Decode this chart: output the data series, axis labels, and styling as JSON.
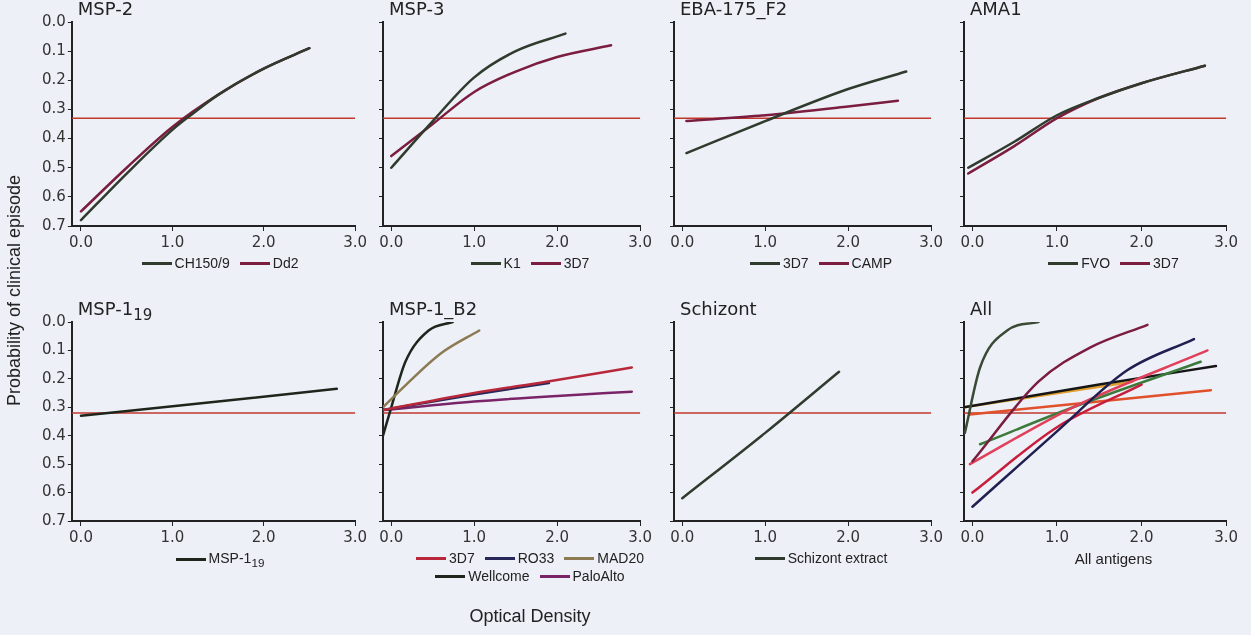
{
  "chart_data": [
    {
      "type": "line",
      "title": "MSP-2",
      "ylabel": "Probability of clinical episode",
      "xlim": [
        -0.1,
        3.0
      ],
      "xticks": [
        {
          "value": 0,
          "label": "0.0"
        },
        {
          "value": 1,
          "label": "1.0"
        },
        {
          "value": 2,
          "label": "2.0"
        },
        {
          "value": 3,
          "label": "3.0"
        }
      ],
      "ylim": [
        0.7,
        0.0
      ],
      "yticks": [
        {
          "value": 0,
          "label": "0.0"
        },
        {
          "value": 0.1,
          "label": "0.1"
        },
        {
          "value": 0.2,
          "label": "0.2"
        },
        {
          "value": 0.3,
          "label": "0.3"
        },
        {
          "value": 0.4,
          "label": "0.4"
        },
        {
          "value": 0.5,
          "label": "0.5"
        },
        {
          "value": 0.6,
          "label": "0.6"
        },
        {
          "value": 0.7,
          "label": "0.7"
        }
      ],
      "grid": false,
      "legend": "bottom",
      "marker": "none",
      "line_style": "solid",
      "ref_lines": [
        {
          "axis": "y",
          "value": 0.33,
          "color": "#c0392b"
        }
      ],
      "series": [
        {
          "name": "CH150/9",
          "color": "#2f3b2c",
          "x": [
            0,
            0.5,
            1.0,
            1.2,
            1.5,
            2.0,
            2.5
          ],
          "values": [
            0.68,
            0.52,
            0.37,
            0.32,
            0.25,
            0.16,
            0.09
          ]
        },
        {
          "name": "Dd2",
          "color": "#7b1d3f",
          "x": [
            0,
            0.5,
            1.0,
            1.5,
            2.0,
            2.5
          ],
          "values": [
            0.65,
            0.5,
            0.36,
            0.25,
            0.16,
            0.09
          ]
        }
      ]
    },
    {
      "type": "line",
      "title": "MSP-3",
      "xlim": [
        -0.1,
        3.0
      ],
      "xticks": [
        {
          "value": 0,
          "label": "0.0"
        },
        {
          "value": 1,
          "label": "1.0"
        },
        {
          "value": 2,
          "label": "2.0"
        },
        {
          "value": 3,
          "label": "3.0"
        }
      ],
      "ylim": [
        0.7,
        0.0
      ],
      "yticks": [
        {
          "value": 0,
          "label": null
        },
        {
          "value": 0.1,
          "label": null
        },
        {
          "value": 0.2,
          "label": null
        },
        {
          "value": 0.3,
          "label": null
        },
        {
          "value": 0.4,
          "label": null
        },
        {
          "value": 0.5,
          "label": null
        },
        {
          "value": 0.6,
          "label": null
        },
        {
          "value": 0.7,
          "label": null
        }
      ],
      "tick_labels": "x",
      "grid": false,
      "legend": "bottom",
      "marker": "none",
      "line_style": "solid",
      "ref_lines": [
        {
          "axis": "y",
          "value": 0.33,
          "color": "#c0392b"
        }
      ],
      "series": [
        {
          "name": "K1",
          "color": "#2f3b2c",
          "x": [
            0,
            0.5,
            1.0,
            1.5,
            2.1
          ],
          "values": [
            0.5,
            0.34,
            0.19,
            0.1,
            0.04
          ]
        },
        {
          "name": "3D7",
          "color": "#7b1d3f",
          "x": [
            0,
            0.5,
            1.0,
            1.5,
            2.0,
            2.65
          ],
          "values": [
            0.46,
            0.35,
            0.24,
            0.17,
            0.12,
            0.08
          ]
        }
      ]
    },
    {
      "type": "line",
      "title": "EBA-175_F2",
      "xlim": [
        -0.1,
        3.0
      ],
      "xticks": [
        {
          "value": 0,
          "label": "0.0"
        },
        {
          "value": 1,
          "label": "1.0"
        },
        {
          "value": 2,
          "label": "2.0"
        },
        {
          "value": 3,
          "label": "3.0"
        }
      ],
      "ylim": [
        0.7,
        0.0
      ],
      "yticks": [
        {
          "value": 0,
          "label": null
        },
        {
          "value": 0.1,
          "label": null
        },
        {
          "value": 0.2,
          "label": null
        },
        {
          "value": 0.3,
          "label": null
        },
        {
          "value": 0.4,
          "label": null
        },
        {
          "value": 0.5,
          "label": null
        },
        {
          "value": 0.6,
          "label": null
        },
        {
          "value": 0.7,
          "label": null
        }
      ],
      "tick_labels": "x",
      "grid": false,
      "legend": "bottom",
      "marker": "none",
      "line_style": "solid",
      "ref_lines": [
        {
          "axis": "y",
          "value": 0.33,
          "color": "#c0392b"
        }
      ],
      "series": [
        {
          "name": "3D7",
          "color": "#2f3b2c",
          "x": [
            0.05,
            1.0,
            2.0,
            2.7
          ],
          "values": [
            0.45,
            0.34,
            0.23,
            0.17
          ]
        },
        {
          "name": "CAMP",
          "color": "#7b1d3f",
          "x": [
            0.05,
            1.0,
            2.0,
            2.6
          ],
          "values": [
            0.34,
            0.32,
            0.29,
            0.27
          ]
        }
      ]
    },
    {
      "type": "line",
      "title": "AMA1",
      "xlim": [
        -0.1,
        3.0
      ],
      "xticks": [
        {
          "value": 0,
          "label": "0.0"
        },
        {
          "value": 1,
          "label": "1.0"
        },
        {
          "value": 2,
          "label": "2.0"
        },
        {
          "value": 3,
          "label": "3.0"
        }
      ],
      "ylim": [
        0.7,
        0.0
      ],
      "yticks": [
        {
          "value": 0,
          "label": null
        },
        {
          "value": 0.1,
          "label": null
        },
        {
          "value": 0.2,
          "label": null
        },
        {
          "value": 0.3,
          "label": null
        },
        {
          "value": 0.4,
          "label": null
        },
        {
          "value": 0.5,
          "label": null
        },
        {
          "value": 0.6,
          "label": null
        },
        {
          "value": 0.7,
          "label": null
        }
      ],
      "tick_labels": "x",
      "grid": false,
      "legend": "bottom",
      "marker": "none",
      "line_style": "solid",
      "ref_lines": [
        {
          "axis": "y",
          "value": 0.33,
          "color": "#c0392b"
        }
      ],
      "series": [
        {
          "name": "FVO",
          "color": "#2f3b2c",
          "x": [
            -0.05,
            0.5,
            1.0,
            1.5,
            2.0,
            2.75
          ],
          "values": [
            0.5,
            0.41,
            0.32,
            0.26,
            0.21,
            0.15
          ]
        },
        {
          "name": "3D7",
          "color": "#7b1d3f",
          "x": [
            -0.05,
            0.5,
            1.0,
            1.5,
            2.0,
            2.75
          ],
          "values": [
            0.52,
            0.425,
            0.33,
            0.26,
            0.21,
            0.15
          ]
        }
      ]
    },
    {
      "type": "line",
      "title": "MSP-1$_{19}$",
      "xlim": [
        -0.1,
        3.0
      ],
      "xticks": [
        {
          "value": 0,
          "label": "0.0"
        },
        {
          "value": 1,
          "label": "1.0"
        },
        {
          "value": 2,
          "label": "2.0"
        },
        {
          "value": 3,
          "label": "3.0"
        }
      ],
      "ylim": [
        0.7,
        0.0
      ],
      "yticks": [
        {
          "value": 0,
          "label": "0.0"
        },
        {
          "value": 0.1,
          "label": "0.1"
        },
        {
          "value": 0.2,
          "label": "0.2"
        },
        {
          "value": 0.3,
          "label": "0.3"
        },
        {
          "value": 0.4,
          "label": "0.4"
        },
        {
          "value": 0.5,
          "label": "0.5"
        },
        {
          "value": 0.6,
          "label": "0.6"
        },
        {
          "value": 0.7,
          "label": "0.7"
        }
      ],
      "grid": false,
      "legend": "bottom",
      "marker": "none",
      "line_style": "solid",
      "ref_lines": [
        {
          "axis": "y",
          "value": 0.32,
          "color": "#c0392b"
        }
      ],
      "series": [
        {
          "name": "MSP-1$_{19}$",
          "color": "#1e261c",
          "x": [
            0,
            1.5,
            2.8
          ],
          "values": [
            0.33,
            0.28,
            0.235
          ]
        }
      ]
    },
    {
      "type": "line",
      "title": "MSP-1_B2",
      "xlabel": "Optical Density",
      "xlim": [
        -0.1,
        3.0
      ],
      "xticks": [
        {
          "value": 0,
          "label": "0.0"
        },
        {
          "value": 1,
          "label": "1.0"
        },
        {
          "value": 2,
          "label": "2.0"
        },
        {
          "value": 3,
          "label": "3.0"
        }
      ],
      "ylim": [
        0.7,
        0.0
      ],
      "yticks": [
        {
          "value": 0,
          "label": null
        },
        {
          "value": 0.1,
          "label": null
        },
        {
          "value": 0.2,
          "label": null
        },
        {
          "value": 0.3,
          "label": null
        },
        {
          "value": 0.4,
          "label": null
        },
        {
          "value": 0.5,
          "label": null
        },
        {
          "value": 0.6,
          "label": null
        },
        {
          "value": 0.7,
          "label": null
        }
      ],
      "tick_labels": "x",
      "grid": false,
      "legend": "bottom",
      "marker": "none",
      "line_style": "solid",
      "ref_lines": [
        {
          "axis": "y",
          "value": 0.32,
          "color": "#c0392b"
        }
      ],
      "series": [
        {
          "name": "3D7",
          "color": "#b8283a",
          "x": [
            -0.1,
            1.0,
            1.87,
            2.9
          ],
          "values": [
            0.31,
            0.25,
            0.21,
            0.16
          ]
        },
        {
          "name": "RO33",
          "color": "#27275a",
          "x": [
            -0.1,
            1.0,
            1.9
          ],
          "values": [
            0.31,
            0.255,
            0.215
          ]
        },
        {
          "name": "MAD20",
          "color": "#8c7b52",
          "x": [
            -0.1,
            0.18,
            0.6,
            1.06
          ],
          "values": [
            0.3,
            0.22,
            0.11,
            0.03
          ]
        },
        {
          "name": "Wellcome",
          "color": "#1e261c",
          "x": [
            -0.1,
            0.0,
            0.17,
            0.45,
            0.74
          ],
          "values": [
            0.4,
            0.3,
            0.14,
            0.03,
            0.0
          ]
        },
        {
          "name": "PaloAlto",
          "color": "#7a2468",
          "x": [
            -0.1,
            1.0,
            2.0,
            2.9
          ],
          "values": [
            0.31,
            0.28,
            0.26,
            0.245
          ]
        }
      ]
    },
    {
      "type": "line",
      "title": "Schizont",
      "xlim": [
        -0.1,
        3.0
      ],
      "xticks": [
        {
          "value": 0,
          "label": "0.0"
        },
        {
          "value": 1,
          "label": "1.0"
        },
        {
          "value": 2,
          "label": "2.0"
        },
        {
          "value": 3,
          "label": "3.0"
        }
      ],
      "ylim": [
        0.7,
        0.0
      ],
      "yticks": [
        {
          "value": 0,
          "label": null
        },
        {
          "value": 0.1,
          "label": null
        },
        {
          "value": 0.2,
          "label": null
        },
        {
          "value": 0.3,
          "label": null
        },
        {
          "value": 0.4,
          "label": null
        },
        {
          "value": 0.5,
          "label": null
        },
        {
          "value": 0.6,
          "label": null
        },
        {
          "value": 0.7,
          "label": null
        }
      ],
      "tick_labels": "x",
      "grid": false,
      "legend": "bottom",
      "marker": "none",
      "line_style": "solid",
      "ref_lines": [
        {
          "axis": "y",
          "value": 0.32,
          "color": "#c0392b"
        }
      ],
      "series": [
        {
          "name": "Schizont extract",
          "color": "#2f3b2c",
          "x": [
            0,
            1.0,
            1.89
          ],
          "values": [
            0.62,
            0.39,
            0.175
          ]
        }
      ]
    },
    {
      "type": "line",
      "title": "All",
      "xlabel": "All antigens",
      "xlim": [
        -0.1,
        3.0
      ],
      "xticks": [
        {
          "value": 0,
          "label": "0.0"
        },
        {
          "value": 1,
          "label": "1.0"
        },
        {
          "value": 2,
          "label": "2.0"
        },
        {
          "value": 3,
          "label": "3.0"
        }
      ],
      "ylim": [
        0.7,
        0.0
      ],
      "yticks": [
        {
          "value": 0,
          "label": null
        },
        {
          "value": 0.1,
          "label": null
        },
        {
          "value": 0.2,
          "label": null
        },
        {
          "value": 0.3,
          "label": null
        },
        {
          "value": 0.4,
          "label": null
        },
        {
          "value": 0.5,
          "label": null
        },
        {
          "value": 0.6,
          "label": null
        },
        {
          "value": 0.7,
          "label": null
        }
      ],
      "tick_labels": "x",
      "grid": false,
      "marker": "none",
      "line_style": "solid",
      "ref_lines": [
        {
          "axis": "y",
          "value": 0.32,
          "color": "#c0392b"
        }
      ],
      "series": [
        {
          "color": "#3a4a34",
          "x": [
            -0.09,
            0.09,
            0.41,
            0.78
          ],
          "values": [
            0.39,
            0.16,
            0.03,
            0.0
          ]
        },
        {
          "color": "#7b1d3f",
          "x": [
            0,
            0.78,
            1.39,
            2.07
          ],
          "values": [
            0.49,
            0.21,
            0.09,
            0.01
          ]
        },
        {
          "color": "#1f2050",
          "x": [
            0,
            0.98,
            1.83,
            2.62
          ],
          "values": [
            0.65,
            0.39,
            0.17,
            0.06
          ]
        },
        {
          "color": "#c81e3c",
          "x": [
            0,
            1.0,
            2.0
          ],
          "values": [
            0.6,
            0.37,
            0.22
          ]
        },
        {
          "color": "#e0405a",
          "x": [
            -0.03,
            1.19,
            2.78
          ],
          "values": [
            0.5,
            0.3,
            0.1
          ]
        },
        {
          "color": "#3c7a3c",
          "x": [
            0.09,
            1.19,
            2.7
          ],
          "values": [
            0.43,
            0.3,
            0.14
          ]
        },
        {
          "color": "#151515",
          "x": [
            -0.1,
            1.5,
            2.88
          ],
          "values": [
            0.3,
            0.22,
            0.155
          ]
        },
        {
          "color": "#e0a030",
          "x": [
            -0.1,
            1.89
          ],
          "values": [
            0.3,
            0.21
          ]
        },
        {
          "color": "#e0502a",
          "x": [
            -0.03,
            2.82
          ],
          "values": [
            0.325,
            0.24
          ]
        }
      ]
    }
  ]
}
